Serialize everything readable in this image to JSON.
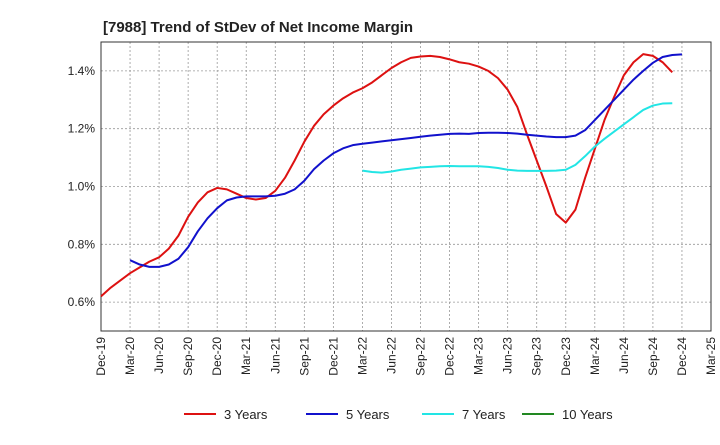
{
  "chart_data": {
    "type": "line",
    "title": "[7988]  Trend of StDev of Net Income Margin",
    "xlabel": "",
    "ylabel": "",
    "ylim": [
      0.5,
      1.5
    ],
    "yticks": [
      0.6,
      0.8,
      1.0,
      1.2,
      1.4
    ],
    "ytick_labels": [
      "0.6%",
      "0.8%",
      "1.0%",
      "1.2%",
      "1.4%"
    ],
    "xticks": [
      "Dec-19",
      "Mar-20",
      "Jun-20",
      "Sep-20",
      "Dec-20",
      "Mar-21",
      "Jun-21",
      "Sep-21",
      "Dec-21",
      "Mar-22",
      "Jun-22",
      "Sep-22",
      "Dec-22",
      "Mar-23",
      "Jun-23",
      "Sep-23",
      "Dec-23",
      "Mar-24",
      "Jun-24",
      "Sep-24",
      "Dec-24",
      "Mar-25"
    ],
    "grid": "vertical-dashed",
    "legend_position": "bottom",
    "series": [
      {
        "name": "3 Years",
        "color": "#dd1111",
        "start_index": 0,
        "values": [
          0.62,
          0.65,
          0.675,
          0.7,
          0.72,
          0.74,
          0.755,
          0.785,
          0.83,
          0.895,
          0.945,
          0.98,
          0.995,
          0.99,
          0.975,
          0.96,
          0.955,
          0.96,
          0.985,
          1.03,
          1.09,
          1.155,
          1.21,
          1.25,
          1.28,
          1.305,
          1.325,
          1.34,
          1.36,
          1.385,
          1.41,
          1.43,
          1.445,
          1.45,
          1.452,
          1.448,
          1.44,
          1.43,
          1.425,
          1.415,
          1.4,
          1.375,
          1.335,
          1.275,
          1.18,
          1.09,
          1.0,
          0.905,
          0.875,
          0.92,
          1.03,
          1.13,
          1.23,
          1.31,
          1.385,
          1.43,
          1.458,
          1.452,
          1.43,
          1.395
        ]
      },
      {
        "name": "5 Years",
        "color": "#1111cc",
        "start_index": 3,
        "values": [
          0.745,
          0.73,
          0.722,
          0.722,
          0.73,
          0.75,
          0.79,
          0.845,
          0.89,
          0.925,
          0.952,
          0.962,
          0.966,
          0.966,
          0.966,
          0.968,
          0.975,
          0.99,
          1.02,
          1.06,
          1.09,
          1.115,
          1.132,
          1.143,
          1.148,
          1.152,
          1.156,
          1.16,
          1.164,
          1.168,
          1.172,
          1.176,
          1.179,
          1.182,
          1.183,
          1.182,
          1.185,
          1.186,
          1.186,
          1.185,
          1.183,
          1.179,
          1.176,
          1.173,
          1.171,
          1.171,
          1.176,
          1.195,
          1.23,
          1.265,
          1.3,
          1.335,
          1.37,
          1.4,
          1.428,
          1.448,
          1.455,
          1.457
        ]
      },
      {
        "name": "7 Years",
        "color": "#22e5e5",
        "start_index": 27,
        "values": [
          1.055,
          1.05,
          1.048,
          1.052,
          1.058,
          1.062,
          1.066,
          1.068,
          1.07,
          1.071,
          1.07,
          1.07,
          1.07,
          1.068,
          1.064,
          1.058,
          1.055,
          1.054,
          1.054,
          1.054,
          1.055,
          1.058,
          1.075,
          1.105,
          1.138,
          1.165,
          1.19,
          1.215,
          1.24,
          1.265,
          1.28,
          1.287,
          1.288
        ]
      },
      {
        "name": "10 Years",
        "color": "#228822",
        "start_index": 0,
        "values": []
      }
    ]
  }
}
